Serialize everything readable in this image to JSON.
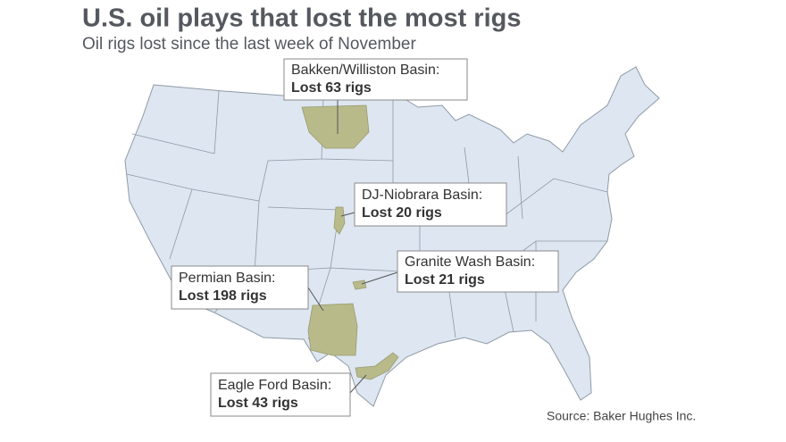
{
  "title": "U.S. oil plays that lost the most rigs",
  "subtitle": "Oil rigs lost since the last week of November",
  "callouts": [
    {
      "name": "Bakken/Williston Basin:",
      "label": "Lost 63 rigs"
    },
    {
      "name": "DJ-Niobrara Basin:",
      "label": "Lost 20 rigs"
    },
    {
      "name": "Granite Wash Basin:",
      "label": "Lost 21 rigs"
    },
    {
      "name": "Permian Basin:",
      "label": "Lost 198 rigs"
    },
    {
      "name": "Eagle Ford Basin:",
      "label": "Lost 43 rigs"
    }
  ],
  "source": "Source: Baker Hughes Inc."
}
